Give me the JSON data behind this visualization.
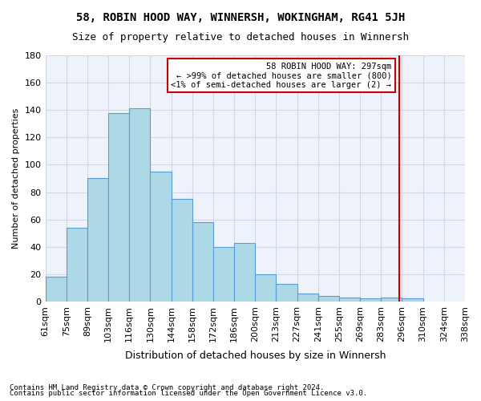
{
  "title": "58, ROBIN HOOD WAY, WINNERSH, WOKINGHAM, RG41 5JH",
  "subtitle": "Size of property relative to detached houses in Winnersh",
  "xlabel": "Distribution of detached houses by size in Winnersh",
  "ylabel": "Number of detached properties",
  "bar_values": [
    18,
    54,
    90,
    138,
    141,
    95,
    75,
    58,
    40,
    43,
    20,
    13,
    6,
    4,
    3,
    2,
    3,
    2
  ],
  "bin_labels": [
    "61sqm",
    "75sqm",
    "89sqm",
    "103sqm",
    "116sqm",
    "130sqm",
    "144sqm",
    "158sqm",
    "172sqm",
    "186sqm",
    "200sqm",
    "213sqm",
    "227sqm",
    "241sqm",
    "255sqm",
    "269sqm",
    "283sqm",
    "296sqm",
    "310sqm",
    "324sqm",
    "338sqm"
  ],
  "bar_color": "#add8e6",
  "bar_edge_color": "#5b9bd5",
  "vline_x": 297,
  "vline_color": "#cc0000",
  "annotation_text": "58 ROBIN HOOD WAY: 297sqm\n← >99% of detached houses are smaller (800)\n<1% of semi-detached houses are larger (2) →",
  "annotation_box_color": "#cc0000",
  "grid_color": "#d0d8e8",
  "background_color": "#eef2fa",
  "ylim": [
    0,
    180
  ],
  "yticks": [
    0,
    20,
    40,
    60,
    80,
    100,
    120,
    140,
    160,
    180
  ],
  "footer_line1": "Contains HM Land Registry data © Crown copyright and database right 2024.",
  "footer_line2": "Contains public sector information licensed under the Open Government Licence v3.0."
}
